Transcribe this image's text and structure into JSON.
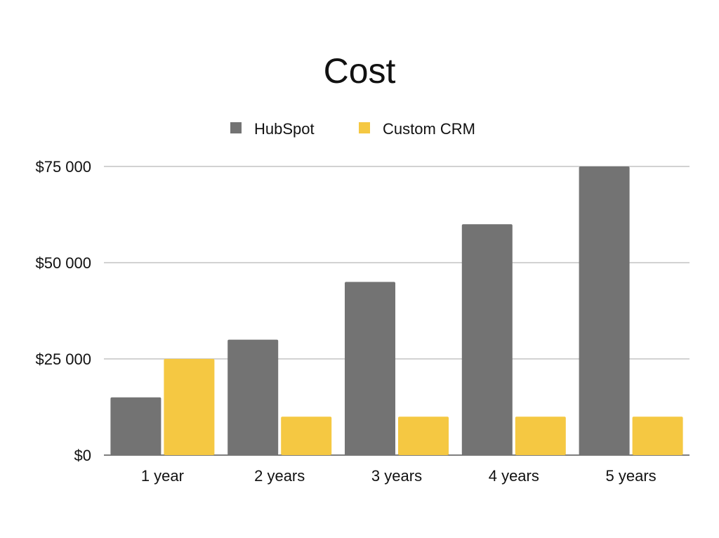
{
  "chart_data": {
    "type": "bar",
    "title": "Cost",
    "xlabel": "",
    "ylabel": "",
    "categories": [
      "1 year",
      "2 years",
      "3 years",
      "4 years",
      "5 years"
    ],
    "series": [
      {
        "name": "HubSpot",
        "color": "#737373",
        "values": [
          15000,
          30000,
          45000,
          60000,
          75000
        ]
      },
      {
        "name": "Custom CRM",
        "color": "#f5c842",
        "values": [
          25000,
          10000,
          10000,
          10000,
          10000
        ]
      }
    ],
    "ylim": [
      0,
      75000
    ],
    "yticks": [
      0,
      25000,
      50000,
      75000
    ],
    "ytick_labels": [
      "$0",
      "$25 000",
      "$50 000",
      "$75 000"
    ],
    "grid": true,
    "legend_position": "top-center"
  }
}
